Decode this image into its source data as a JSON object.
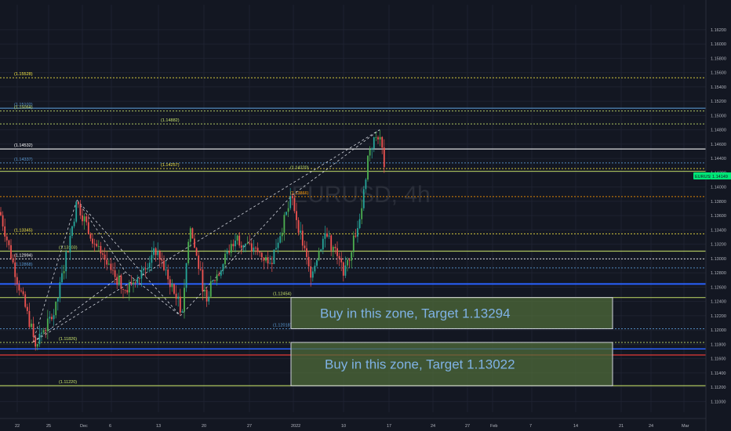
{
  "chart_data": {
    "type": "candlestick",
    "symbol_watermark": "EURUSD, 4h",
    "symbol_tag": "EURUSD",
    "last_price_label": "1.14149",
    "last_price": 1.14149,
    "price_axis": {
      "range": [
        1.1085,
        1.1655
      ],
      "ticks": [
        "1.11000",
        "1.11200",
        "1.11400",
        "1.11600",
        "1.11800",
        "1.12000",
        "1.12200",
        "1.12400",
        "1.12600",
        "1.12800",
        "1.13000",
        "1.13200",
        "1.13400",
        "1.13600",
        "1.13800",
        "1.14000",
        "1.14200",
        "1.14400",
        "1.14600",
        "1.14800",
        "1.15000",
        "1.15200",
        "1.15400",
        "1.15600",
        "1.15800",
        "1.16000",
        "1.16200"
      ],
      "tick_values": [
        1.11,
        1.112,
        1.114,
        1.116,
        1.118,
        1.12,
        1.122,
        1.124,
        1.126,
        1.128,
        1.13,
        1.132,
        1.134,
        1.136,
        1.138,
        1.14,
        1.142,
        1.144,
        1.146,
        1.148,
        1.15,
        1.152,
        1.154,
        1.156,
        1.158,
        1.16,
        1.162
      ]
    },
    "time_axis": {
      "labels": [
        "22",
        "25",
        "Dec",
        "6",
        "13",
        "20",
        "27",
        "2022",
        "10",
        "17",
        "24",
        "27",
        "Feb",
        "7",
        "14",
        "21",
        "24",
        "Mar"
      ]
    },
    "levels": [
      {
        "price": 1.15528,
        "label": "(1.15528)",
        "color": "#f5e642"
      },
      {
        "price": 1.15102,
        "label": "(1.15102)",
        "color": "#5b9bd5"
      },
      {
        "price": 1.15064,
        "label": "(1.15064)",
        "color": "#c8e36a"
      },
      {
        "price": 1.14882,
        "label": "(1.14882)",
        "color": "#c8e36a"
      },
      {
        "price": 1.14532,
        "label": "(1.14532)",
        "color": "#ffffff"
      },
      {
        "price": 1.14337,
        "label": "(1.14337)",
        "color": "#5b9bd5"
      },
      {
        "price": 1.14257,
        "label": "(1.14257)",
        "color": "#f5e642"
      },
      {
        "price": 1.1422,
        "label": "(1.14220)",
        "color": "#c8e36a"
      },
      {
        "price": 1.13866,
        "label": "(1.13866)",
        "color": "#ff9800"
      },
      {
        "price": 1.13345,
        "label": "(1.13345)",
        "color": "#f5e642"
      },
      {
        "price": 1.13103,
        "label": "(1.13103)",
        "color": "#c8e36a"
      },
      {
        "price": 1.12994,
        "label": "(1.12994)",
        "color": "#ffffff"
      },
      {
        "price": 1.12868,
        "label": "(1.12868)",
        "color": "#5b9bd5"
      },
      {
        "price": 1.12454,
        "label": "(1.12454)",
        "color": "#c8e36a"
      },
      {
        "price": 1.12018,
        "label": "(1.12018)",
        "color": "#5b9bd5"
      },
      {
        "price": 1.11826,
        "label": "(1.11826)",
        "color": "#c8e36a"
      },
      {
        "price": 1.1122,
        "label": "(1.11220)",
        "color": "#c8e36a"
      }
    ],
    "zones": [
      {
        "label": "Buy in this zone, Target 1.13294",
        "top": 1.12454,
        "bottom": 1.12018
      },
      {
        "label": "Buy in this zone, Target 1.13022",
        "top": 1.11826,
        "bottom": 1.1122
      }
    ]
  },
  "colors": {
    "background": "#131722",
    "grid": "#1e2230",
    "bull": "#26a69a",
    "bull_bright": "#4caf50",
    "bear": "#ef5350",
    "zone_fill": "#4f6b3a",
    "zone_text": "#7fb2e5",
    "axis_text": "#b2b5be",
    "tag_bg": "#00e676"
  }
}
